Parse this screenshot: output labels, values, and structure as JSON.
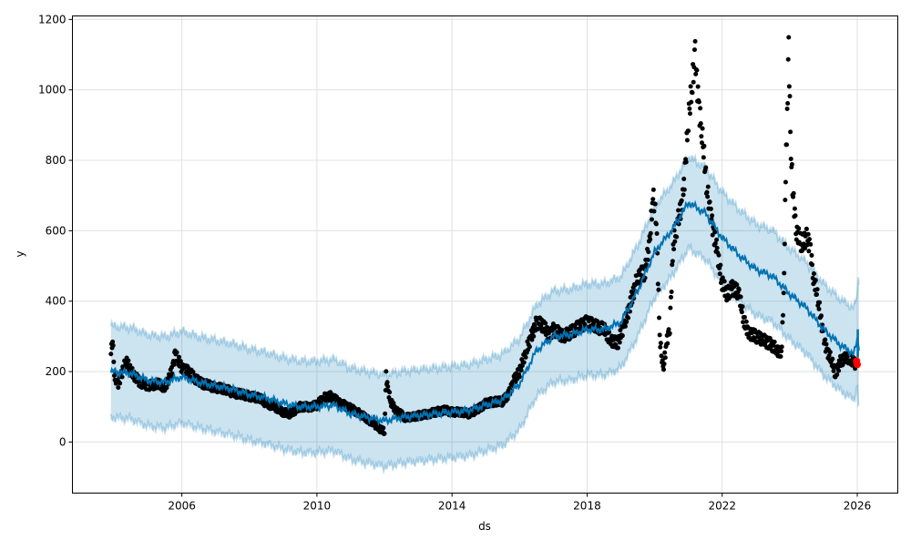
{
  "chart_data": {
    "type": "scatter",
    "title": "",
    "xlabel": "ds",
    "ylabel": "y",
    "xlim": [
      2002.76,
      2027.2
    ],
    "ylim": [
      -145,
      1210
    ],
    "grid": true,
    "xticks": [
      2006,
      2010,
      2014,
      2018,
      2022,
      2026
    ],
    "yticks": [
      0,
      200,
      400,
      600,
      800,
      1000,
      1200
    ],
    "colors": {
      "observed": "#000000",
      "forecast": "#0072B2",
      "interval": "#0072B2",
      "latest": "#ff0000"
    },
    "observed": [
      [
        2003.9,
        250
      ],
      [
        2003.95,
        300
      ],
      [
        2004.0,
        190
      ],
      [
        2004.1,
        160
      ],
      [
        2004.2,
        190
      ],
      [
        2004.35,
        230
      ],
      [
        2004.5,
        200
      ],
      [
        2004.75,
        170
      ],
      [
        2005.0,
        160
      ],
      [
        2005.3,
        165
      ],
      [
        2005.5,
        155
      ],
      [
        2005.7,
        200
      ],
      [
        2005.8,
        250
      ],
      [
        2005.9,
        230
      ],
      [
        2006.0,
        210
      ],
      [
        2006.2,
        200
      ],
      [
        2006.5,
        170
      ],
      [
        2006.8,
        160
      ],
      [
        2007.0,
        155
      ],
      [
        2007.3,
        150
      ],
      [
        2007.5,
        140
      ],
      [
        2007.8,
        135
      ],
      [
        2008.0,
        130
      ],
      [
        2008.3,
        125
      ],
      [
        2008.5,
        110
      ],
      [
        2008.75,
        100
      ],
      [
        2009.0,
        85
      ],
      [
        2009.2,
        80
      ],
      [
        2009.5,
        100
      ],
      [
        2009.8,
        100
      ],
      [
        2010.0,
        105
      ],
      [
        2010.2,
        125
      ],
      [
        2010.4,
        130
      ],
      [
        2010.7,
        110
      ],
      [
        2011.0,
        95
      ],
      [
        2011.2,
        85
      ],
      [
        2011.5,
        65
      ],
      [
        2011.7,
        50
      ],
      [
        2011.9,
        35
      ],
      [
        2012.0,
        30
      ],
      [
        2012.05,
        190
      ],
      [
        2012.1,
        150
      ],
      [
        2012.2,
        110
      ],
      [
        2012.35,
        90
      ],
      [
        2012.6,
        70
      ],
      [
        2012.8,
        70
      ],
      [
        2013.0,
        75
      ],
      [
        2013.3,
        80
      ],
      [
        2013.5,
        85
      ],
      [
        2013.8,
        90
      ],
      [
        2014.0,
        85
      ],
      [
        2014.3,
        85
      ],
      [
        2014.5,
        80
      ],
      [
        2014.8,
        95
      ],
      [
        2015.0,
        110
      ],
      [
        2015.3,
        115
      ],
      [
        2015.5,
        115
      ],
      [
        2015.7,
        140
      ],
      [
        2015.85,
        180
      ],
      [
        2016.0,
        200
      ],
      [
        2016.2,
        260
      ],
      [
        2016.35,
        300
      ],
      [
        2016.5,
        340
      ],
      [
        2016.7,
        330
      ],
      [
        2016.9,
        300
      ],
      [
        2017.0,
        320
      ],
      [
        2017.3,
        300
      ],
      [
        2017.5,
        310
      ],
      [
        2017.8,
        330
      ],
      [
        2018.0,
        340
      ],
      [
        2018.2,
        330
      ],
      [
        2018.5,
        320
      ],
      [
        2018.7,
        290
      ],
      [
        2018.9,
        280
      ],
      [
        2019.1,
        330
      ],
      [
        2019.3,
        400
      ],
      [
        2019.5,
        470
      ],
      [
        2019.7,
        480
      ],
      [
        2019.85,
        560
      ],
      [
        2019.95,
        700
      ],
      [
        2020.05,
        640
      ],
      [
        2020.15,
        300
      ],
      [
        2020.25,
        200
      ],
      [
        2020.35,
        280
      ],
      [
        2020.45,
        330
      ],
      [
        2020.55,
        560
      ],
      [
        2020.7,
        630
      ],
      [
        2020.85,
        700
      ],
      [
        2021.0,
        920
      ],
      [
        2021.1,
        1000
      ],
      [
        2021.2,
        1100
      ],
      [
        2021.3,
        960
      ],
      [
        2021.4,
        880
      ],
      [
        2021.55,
        720
      ],
      [
        2021.7,
        620
      ],
      [
        2021.85,
        540
      ],
      [
        2022.0,
        450
      ],
      [
        2022.15,
        420
      ],
      [
        2022.3,
        440
      ],
      [
        2022.5,
        420
      ],
      [
        2022.65,
        340
      ],
      [
        2022.8,
        310
      ],
      [
        2023.0,
        300
      ],
      [
        2023.2,
        290
      ],
      [
        2023.4,
        280
      ],
      [
        2023.6,
        265
      ],
      [
        2023.75,
        250
      ],
      [
        2023.82,
        400
      ],
      [
        2023.88,
        750
      ],
      [
        2023.94,
        1000
      ],
      [
        2023.97,
        1140
      ],
      [
        2024.02,
        850
      ],
      [
        2024.1,
        700
      ],
      [
        2024.2,
        600
      ],
      [
        2024.35,
        560
      ],
      [
        2024.5,
        580
      ],
      [
        2024.6,
        560
      ],
      [
        2024.7,
        470
      ],
      [
        2024.85,
        400
      ],
      [
        2025.0,
        300
      ],
      [
        2025.1,
        260
      ],
      [
        2025.25,
        230
      ],
      [
        2025.35,
        190
      ],
      [
        2025.5,
        230
      ],
      [
        2025.7,
        240
      ],
      [
        2025.85,
        230
      ],
      [
        2025.95,
        220
      ]
    ],
    "latest": [
      [
        2025.98,
        230
      ],
      [
        2026.0,
        220
      ]
    ],
    "forecast": [
      [
        2003.9,
        200
      ],
      [
        2004.5,
        195
      ],
      [
        2005.0,
        175
      ],
      [
        2005.5,
        170
      ],
      [
        2006.0,
        185
      ],
      [
        2006.5,
        170
      ],
      [
        2007.0,
        160
      ],
      [
        2007.5,
        150
      ],
      [
        2008.0,
        135
      ],
      [
        2008.5,
        125
      ],
      [
        2009.0,
        110
      ],
      [
        2009.5,
        100
      ],
      [
        2010.0,
        100
      ],
      [
        2010.5,
        105
      ],
      [
        2011.0,
        80
      ],
      [
        2011.5,
        70
      ],
      [
        2012.0,
        60
      ],
      [
        2012.5,
        70
      ],
      [
        2013.0,
        75
      ],
      [
        2013.5,
        80
      ],
      [
        2014.0,
        85
      ],
      [
        2014.5,
        90
      ],
      [
        2015.0,
        105
      ],
      [
        2015.5,
        120
      ],
      [
        2016.0,
        165
      ],
      [
        2016.5,
        260
      ],
      [
        2017.0,
        300
      ],
      [
        2017.5,
        305
      ],
      [
        2018.0,
        320
      ],
      [
        2018.5,
        320
      ],
      [
        2019.0,
        340
      ],
      [
        2019.5,
        430
      ],
      [
        2020.0,
        540
      ],
      [
        2020.5,
        600
      ],
      [
        2021.0,
        680
      ],
      [
        2021.5,
        650
      ],
      [
        2022.0,
        580
      ],
      [
        2022.5,
        530
      ],
      [
        2023.0,
        490
      ],
      [
        2023.5,
        470
      ],
      [
        2024.0,
        420
      ],
      [
        2024.5,
        380
      ],
      [
        2025.0,
        320
      ],
      [
        2025.5,
        275
      ],
      [
        2025.9,
        250
      ],
      [
        2026.0,
        290
      ],
      [
        2026.05,
        270
      ]
    ],
    "interval_halfwidth": 130
  }
}
